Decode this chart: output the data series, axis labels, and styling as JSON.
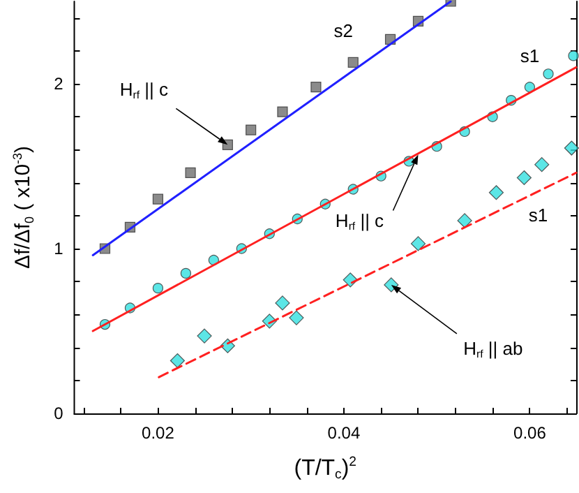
{
  "chart_data": {
    "type": "scatter",
    "xlabel": "(T/T$_{c}$)$^{2}$",
    "ylabel": "Δf/Δf$_{0}$ ( x10$^{-3}$)",
    "xlim": [
      0.011,
      0.065
    ],
    "ylim": [
      0,
      2.5
    ],
    "xticks": [
      {
        "value": 0.012,
        "label": null
      },
      {
        "value": 0.016,
        "label": null
      },
      0.02,
      {
        "value": 0.024,
        "label": null
      },
      {
        "value": 0.028,
        "label": null
      },
      {
        "value": 0.032,
        "label": null
      },
      {
        "value": 0.036,
        "label": null
      },
      0.04,
      {
        "value": 0.044,
        "label": null
      },
      {
        "value": 0.048,
        "label": null
      },
      {
        "value": 0.052,
        "label": null
      },
      {
        "value": 0.056,
        "label": null
      },
      0.06,
      {
        "value": 0.064,
        "label": null
      }
    ],
    "yticks": [
      0,
      {
        "value": 0.2,
        "label": null
      },
      {
        "value": 0.4,
        "label": null
      },
      {
        "value": 0.6,
        "label": null
      },
      {
        "value": 0.8,
        "label": null
      },
      1,
      {
        "value": 1.2,
        "label": null
      },
      {
        "value": 1.4,
        "label": null
      },
      {
        "value": 1.6,
        "label": null
      },
      {
        "value": 1.8,
        "label": null
      },
      2,
      {
        "value": 2.2,
        "label": null
      },
      {
        "value": 2.4,
        "label": null
      }
    ],
    "grid": false,
    "legend": false,
    "series": [
      {
        "name": "s2",
        "marker": "square",
        "color": "#6e6e6e",
        "x": [
          0.0143,
          0.017,
          0.02,
          0.0235,
          0.0275,
          0.03,
          0.0334,
          0.037,
          0.041,
          0.045,
          0.048,
          0.0515
        ],
        "values": [
          1.0,
          1.13,
          1.3,
          1.46,
          1.63,
          1.72,
          1.83,
          1.98,
          2.13,
          2.27,
          2.38,
          2.5
        ]
      },
      {
        "name": "s1",
        "marker": "circle",
        "color": "#33e0e0",
        "x": [
          0.0143,
          0.017,
          0.02,
          0.023,
          0.026,
          0.029,
          0.032,
          0.035,
          0.038,
          0.041,
          0.044,
          0.047,
          0.05,
          0.053,
          0.056,
          0.058,
          0.06,
          0.062,
          0.0647
        ],
        "values": [
          0.54,
          0.64,
          0.76,
          0.85,
          0.93,
          1.0,
          1.09,
          1.18,
          1.27,
          1.36,
          1.44,
          1.53,
          1.62,
          1.71,
          1.8,
          1.9,
          1.98,
          2.06,
          2.17
        ]
      },
      {
        "name": "s1",
        "marker": "diamond",
        "color": "#33e0e0",
        "x": [
          0.0221,
          0.025,
          0.0275,
          0.032,
          0.0334,
          0.0349,
          0.0407,
          0.0451,
          0.048,
          0.053,
          0.0564,
          0.0594,
          0.0613,
          0.0645
        ],
        "values": [
          0.32,
          0.47,
          0.41,
          0.56,
          0.67,
          0.58,
          0.81,
          0.78,
          1.03,
          1.17,
          1.34,
          1.43,
          1.51,
          1.61
        ]
      },
      {
        "type": "line",
        "marker": "none",
        "line_style": "solid",
        "color": "#2020ff",
        "x": [
          0.013,
          0.0515
        ],
        "values": [
          0.96,
          2.5
        ]
      },
      {
        "type": "line",
        "marker": "none",
        "line_style": "solid",
        "color": "#ff2020",
        "x": [
          0.013,
          0.065
        ],
        "values": [
          0.5,
          2.1
        ]
      },
      {
        "type": "line",
        "marker": "none",
        "line_style": "dashed",
        "color": "#ff2020",
        "x": [
          0.0201,
          0.065
        ],
        "values": [
          0.22,
          1.46
        ]
      }
    ],
    "annotations": [
      {
        "text": "H$_{rf}$ || c",
        "x": 0.0275,
        "y": 1.63
      },
      {
        "text": "H$_{rf}$ || c",
        "x": 0.048,
        "y": 1.57
      },
      {
        "text": "H$_{rf}$ || ab",
        "x": 0.0451,
        "y": 0.78
      }
    ]
  }
}
